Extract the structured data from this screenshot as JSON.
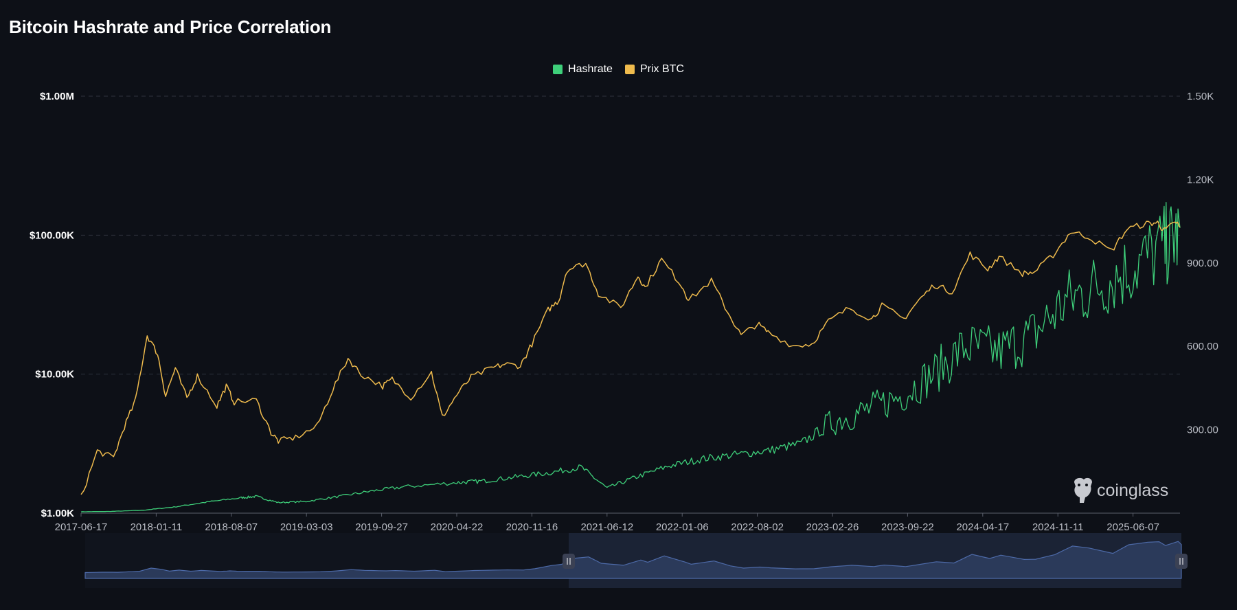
{
  "chart_data": {
    "type": "line",
    "title": "Bitcoin Hashrate and Price Correlation",
    "x_ticks": [
      "2017-06-17",
      "2018-01-11",
      "2018-08-07",
      "2019-03-03",
      "2019-09-27",
      "2020-04-22",
      "2020-11-16",
      "2021-06-12",
      "2022-01-06",
      "2022-08-02",
      "2023-02-26",
      "2023-09-22",
      "2024-04-17",
      "2024-11-11",
      "2025-06-07"
    ],
    "x_range": [
      "2017-06-17",
      "2025-10-15"
    ],
    "y_left": {
      "scale": "log",
      "range": [
        1000,
        1000000
      ],
      "ticks": [
        "$1.00K",
        "$10.00K",
        "$100.00K",
        "$1.00M"
      ],
      "tick_values": [
        1000,
        10000,
        100000,
        1000000
      ]
    },
    "y_right": {
      "scale": "linear",
      "range": [
        0,
        1500
      ],
      "ticks": [
        "300.00",
        "600.00",
        "900.00",
        "1.20K",
        "1.50K"
      ],
      "tick_values": [
        300,
        600,
        900,
        1200,
        1500
      ]
    },
    "grid": true,
    "legend_position": "top-center",
    "series": [
      {
        "name": "Hashrate",
        "axis": "right",
        "color": "#3ecf7a",
        "points": [
          [
            "2017-06-17",
            5
          ],
          [
            "2017-09-01",
            6
          ],
          [
            "2017-12-01",
            10
          ],
          [
            "2018-03-01",
            22
          ],
          [
            "2018-06-01",
            40
          ],
          [
            "2018-09-01",
            55
          ],
          [
            "2018-10-15",
            60
          ],
          [
            "2018-12-15",
            38
          ],
          [
            "2019-03-01",
            42
          ],
          [
            "2019-06-01",
            60
          ],
          [
            "2019-09-01",
            80
          ],
          [
            "2019-12-01",
            95
          ],
          [
            "2020-04-22",
            110
          ],
          [
            "2020-07-01",
            115
          ],
          [
            "2020-10-01",
            130
          ],
          [
            "2021-01-01",
            145
          ],
          [
            "2021-04-01",
            165
          ],
          [
            "2021-06-12",
            90
          ],
          [
            "2021-09-01",
            130
          ],
          [
            "2021-12-01",
            170
          ],
          [
            "2022-03-01",
            195
          ],
          [
            "2022-06-01",
            210
          ],
          [
            "2022-09-01",
            225
          ],
          [
            "2022-12-01",
            250
          ],
          [
            "2023-03-01",
            330
          ],
          [
            "2023-06-01",
            370
          ],
          [
            "2023-09-01",
            420
          ],
          [
            "2023-12-01",
            500
          ],
          [
            "2024-03-01",
            600
          ],
          [
            "2024-06-01",
            580
          ],
          [
            "2024-09-01",
            640
          ],
          [
            "2024-12-01",
            760
          ],
          [
            "2025-03-01",
            820
          ],
          [
            "2025-06-01",
            880
          ],
          [
            "2025-09-01",
            960
          ],
          [
            "2025-10-15",
            1000
          ]
        ]
      },
      {
        "name": "Prix BTC",
        "axis": "left",
        "color": "#efbb4d",
        "points": [
          [
            "2017-06-17",
            1300
          ],
          [
            "2017-08-01",
            2800
          ],
          [
            "2017-09-15",
            2500
          ],
          [
            "2017-10-15",
            4200
          ],
          [
            "2017-11-15",
            6500
          ],
          [
            "2017-12-17",
            19000
          ],
          [
            "2018-01-15",
            14000
          ],
          [
            "2018-02-06",
            7000
          ],
          [
            "2018-03-05",
            11000
          ],
          [
            "2018-04-06",
            6700
          ],
          [
            "2018-05-05",
            9700
          ],
          [
            "2018-06-28",
            5900
          ],
          [
            "2018-07-24",
            8200
          ],
          [
            "2018-08-15",
            6300
          ],
          [
            "2018-10-15",
            6500
          ],
          [
            "2018-11-25",
            3800
          ],
          [
            "2018-12-15",
            3300
          ],
          [
            "2019-02-01",
            3500
          ],
          [
            "2019-04-01",
            4200
          ],
          [
            "2019-05-15",
            7800
          ],
          [
            "2019-06-26",
            13000
          ],
          [
            "2019-08-01",
            10000
          ],
          [
            "2019-09-30",
            8200
          ],
          [
            "2019-10-26",
            9200
          ],
          [
            "2019-12-17",
            6800
          ],
          [
            "2020-02-12",
            10300
          ],
          [
            "2020-03-13",
            4900
          ],
          [
            "2020-04-22",
            7100
          ],
          [
            "2020-06-01",
            9500
          ],
          [
            "2020-07-27",
            11000
          ],
          [
            "2020-09-01",
            11800
          ],
          [
            "2020-10-15",
            11500
          ],
          [
            "2020-11-16",
            16500
          ],
          [
            "2020-12-31",
            29000
          ],
          [
            "2021-01-30",
            34000
          ],
          [
            "2021-02-20",
            56000
          ],
          [
            "2021-04-14",
            63000
          ],
          [
            "2021-05-19",
            38000
          ],
          [
            "2021-07-20",
            30000
          ],
          [
            "2021-09-06",
            51000
          ],
          [
            "2021-09-25",
            42000
          ],
          [
            "2021-11-10",
            67000
          ],
          [
            "2022-01-06",
            43000
          ],
          [
            "2022-01-24",
            34000
          ],
          [
            "2022-03-28",
            47000
          ],
          [
            "2022-05-12",
            28000
          ],
          [
            "2022-06-18",
            19000
          ],
          [
            "2022-08-02",
            23000
          ],
          [
            "2022-09-01",
            20000
          ],
          [
            "2022-11-09",
            16000
          ],
          [
            "2022-12-31",
            16500
          ],
          [
            "2023-02-15",
            24000
          ],
          [
            "2023-04-14",
            30000
          ],
          [
            "2023-06-15",
            25000
          ],
          [
            "2023-07-13",
            31000
          ],
          [
            "2023-09-11",
            25000
          ],
          [
            "2023-10-23",
            34000
          ],
          [
            "2023-12-05",
            44000
          ],
          [
            "2024-01-23",
            39000
          ],
          [
            "2024-03-13",
            73000
          ],
          [
            "2024-05-01",
            57000
          ],
          [
            "2024-06-01",
            70000
          ],
          [
            "2024-08-05",
            53000
          ],
          [
            "2024-09-06",
            54000
          ],
          [
            "2024-10-29",
            72000
          ],
          [
            "2024-12-17",
            106000
          ],
          [
            "2025-02-01",
            98000
          ],
          [
            "2025-04-08",
            77000
          ],
          [
            "2025-05-22",
            111000
          ],
          [
            "2025-07-14",
            121000
          ],
          [
            "2025-08-14",
            123000
          ],
          [
            "2025-09-01",
            108000
          ],
          [
            "2025-10-06",
            124000
          ],
          [
            "2025-10-15",
            112000
          ]
        ]
      }
    ]
  },
  "watermark": {
    "brand": "coinglass"
  },
  "legend_swatch_colors": {
    "hashrate": "#3ecf7a",
    "price": "#efbb4d"
  }
}
